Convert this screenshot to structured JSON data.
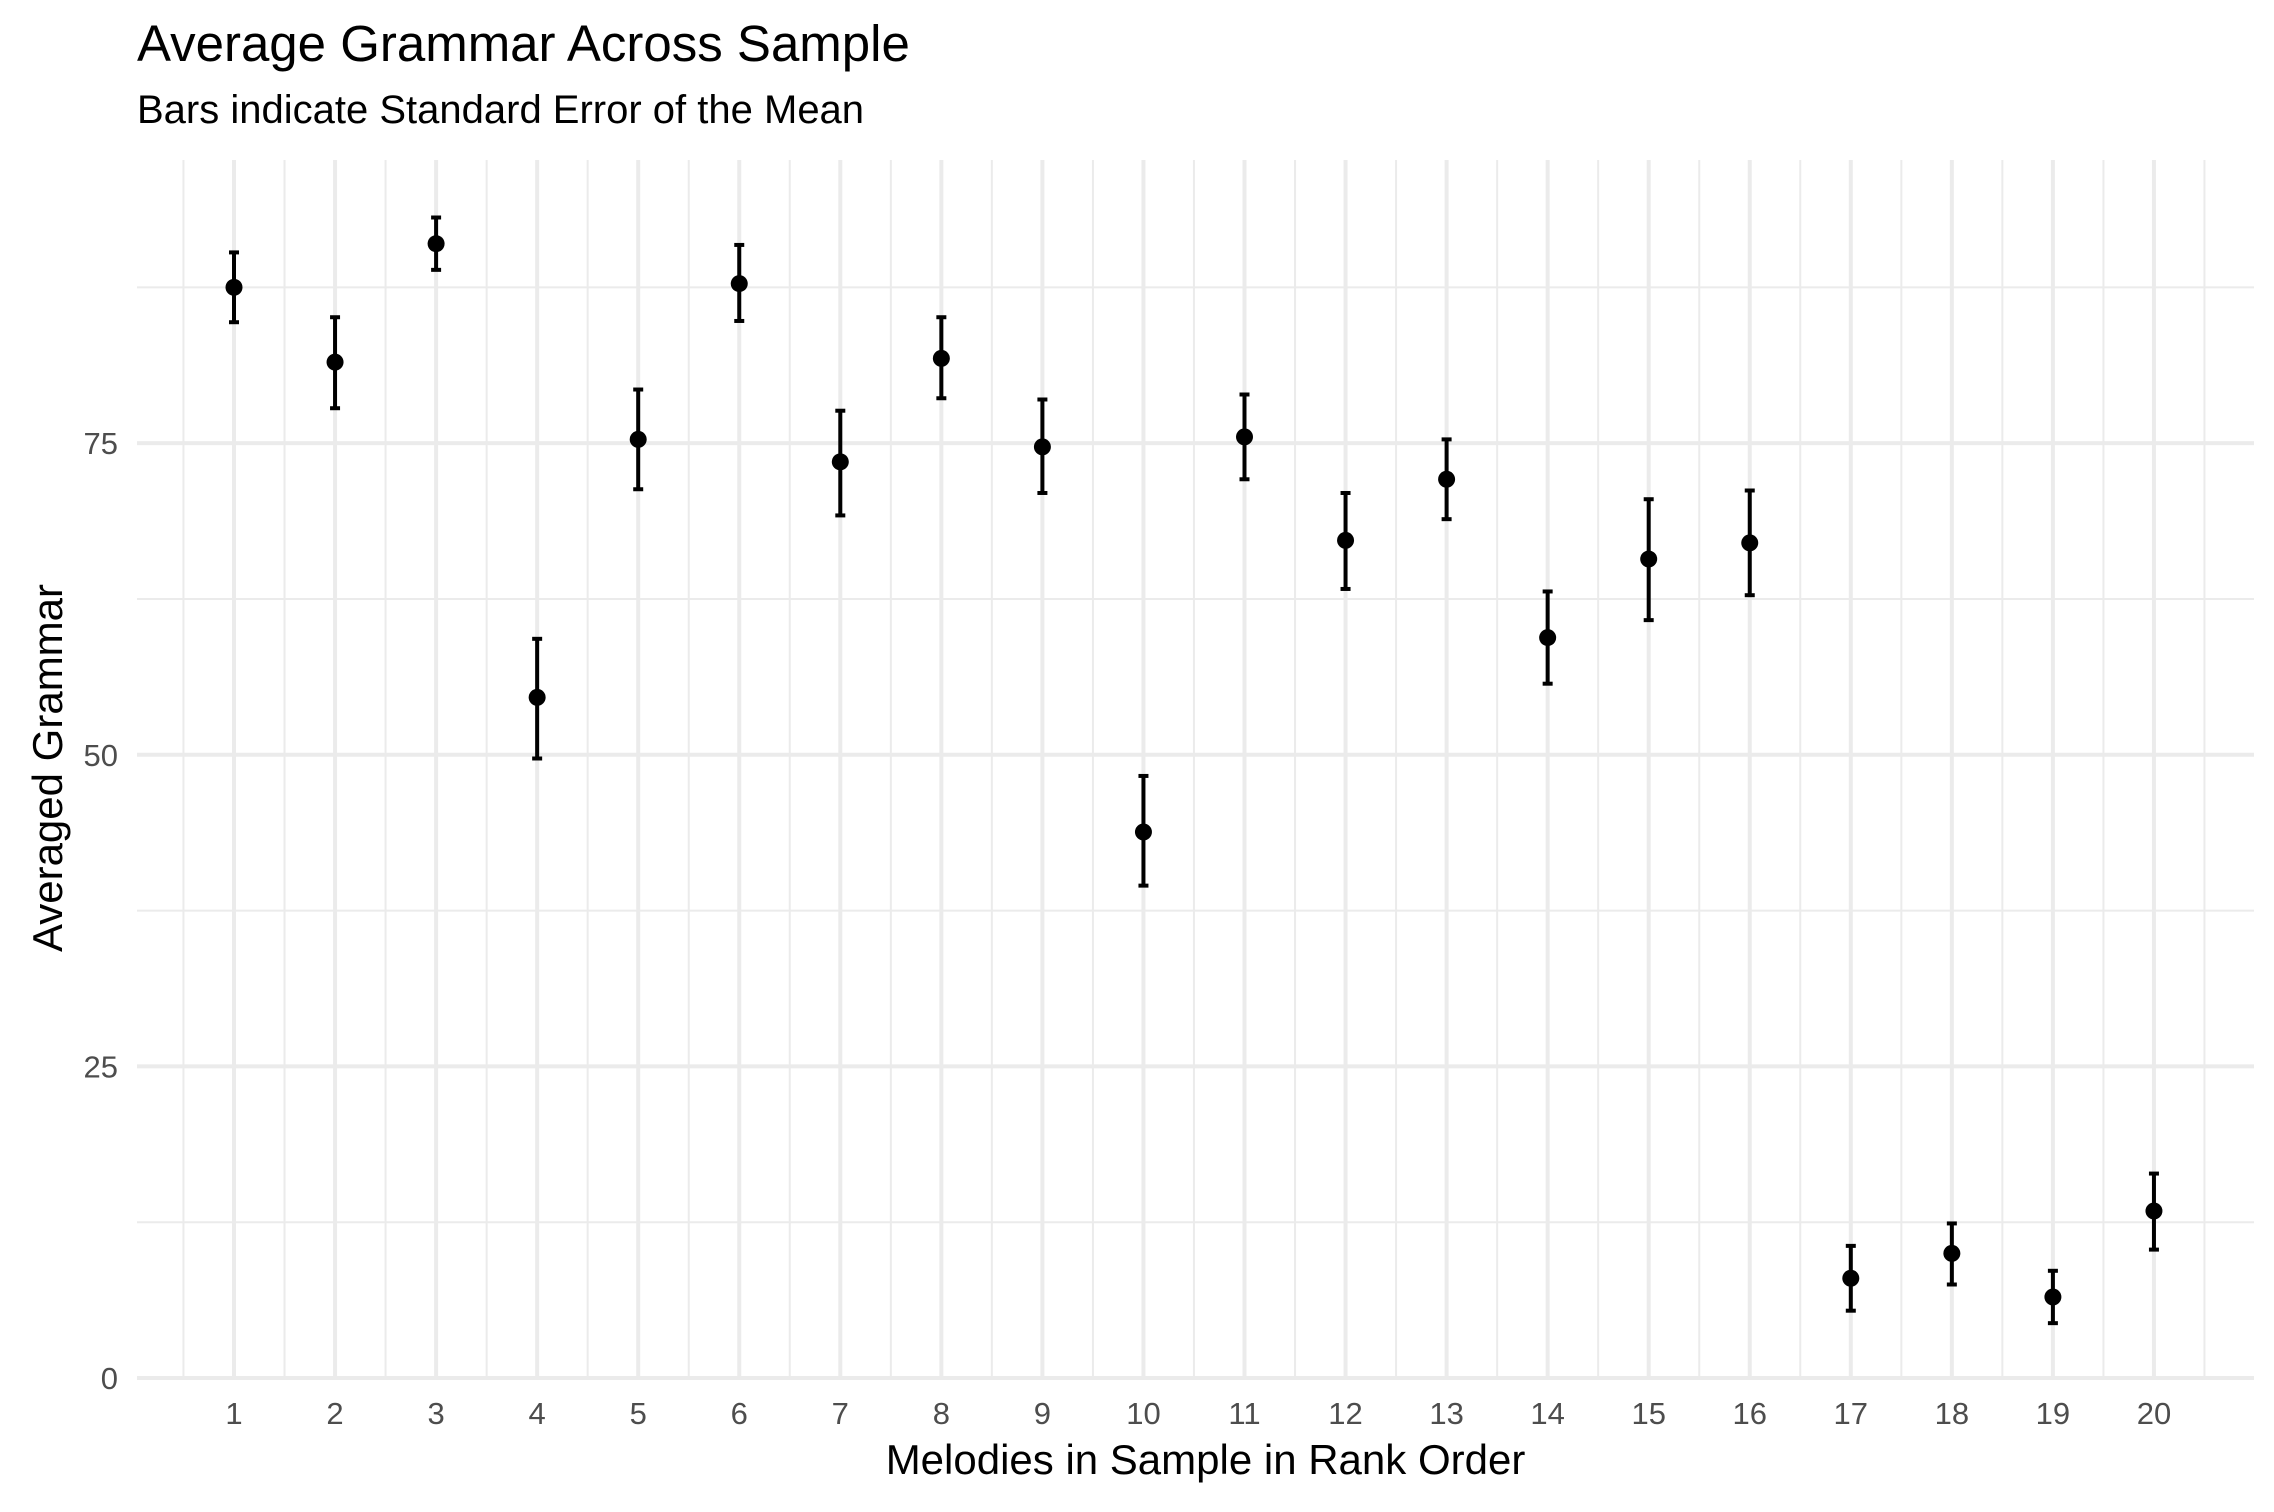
{
  "chart_data": {
    "type": "scatter",
    "title": "Average Grammar Across Sample",
    "subtitle": "Bars indicate Standard Error of the Mean",
    "xlabel": "Melodies in Sample in Rank Order",
    "ylabel": "Averaged Grammar",
    "x_categories": [
      "1",
      "2",
      "3",
      "4",
      "5",
      "6",
      "7",
      "8",
      "9",
      "10",
      "11",
      "12",
      "13",
      "14",
      "15",
      "16",
      "17",
      "18",
      "19",
      "20"
    ],
    "y_ticks": [
      0,
      25,
      50,
      75
    ],
    "ylim": [
      0,
      93
    ],
    "grid": true,
    "points": [
      {
        "x": "1",
        "mean": 87.5,
        "lower": 84.7,
        "upper": 90.3
      },
      {
        "x": "2",
        "mean": 81.5,
        "lower": 77.8,
        "upper": 85.1
      },
      {
        "x": "3",
        "mean": 91.0,
        "lower": 88.9,
        "upper": 93.1
      },
      {
        "x": "4",
        "mean": 54.6,
        "lower": 49.7,
        "upper": 59.3
      },
      {
        "x": "5",
        "mean": 75.3,
        "lower": 71.3,
        "upper": 79.3
      },
      {
        "x": "6",
        "mean": 87.8,
        "lower": 84.8,
        "upper": 90.9
      },
      {
        "x": "7",
        "mean": 73.5,
        "lower": 69.2,
        "upper": 77.6
      },
      {
        "x": "8",
        "mean": 81.8,
        "lower": 78.6,
        "upper": 85.1
      },
      {
        "x": "9",
        "mean": 74.7,
        "lower": 71.0,
        "upper": 78.5
      },
      {
        "x": "10",
        "mean": 43.8,
        "lower": 39.5,
        "upper": 48.3
      },
      {
        "x": "11",
        "mean": 75.5,
        "lower": 72.1,
        "upper": 78.9
      },
      {
        "x": "12",
        "mean": 67.2,
        "lower": 63.3,
        "upper": 71.0
      },
      {
        "x": "13",
        "mean": 72.1,
        "lower": 68.9,
        "upper": 75.3
      },
      {
        "x": "14",
        "mean": 59.4,
        "lower": 55.7,
        "upper": 63.1
      },
      {
        "x": "15",
        "mean": 65.7,
        "lower": 60.8,
        "upper": 70.5
      },
      {
        "x": "16",
        "mean": 67.0,
        "lower": 62.8,
        "upper": 71.2
      },
      {
        "x": "17",
        "mean": 8.0,
        "lower": 5.4,
        "upper": 10.6
      },
      {
        "x": "18",
        "mean": 10.0,
        "lower": 7.5,
        "upper": 12.4
      },
      {
        "x": "19",
        "mean": 6.5,
        "lower": 4.4,
        "upper": 8.6
      },
      {
        "x": "20",
        "mean": 13.4,
        "lower": 10.3,
        "upper": 16.4
      }
    ],
    "colors": {
      "point": "#000000",
      "grid": "#ebebeb"
    }
  }
}
